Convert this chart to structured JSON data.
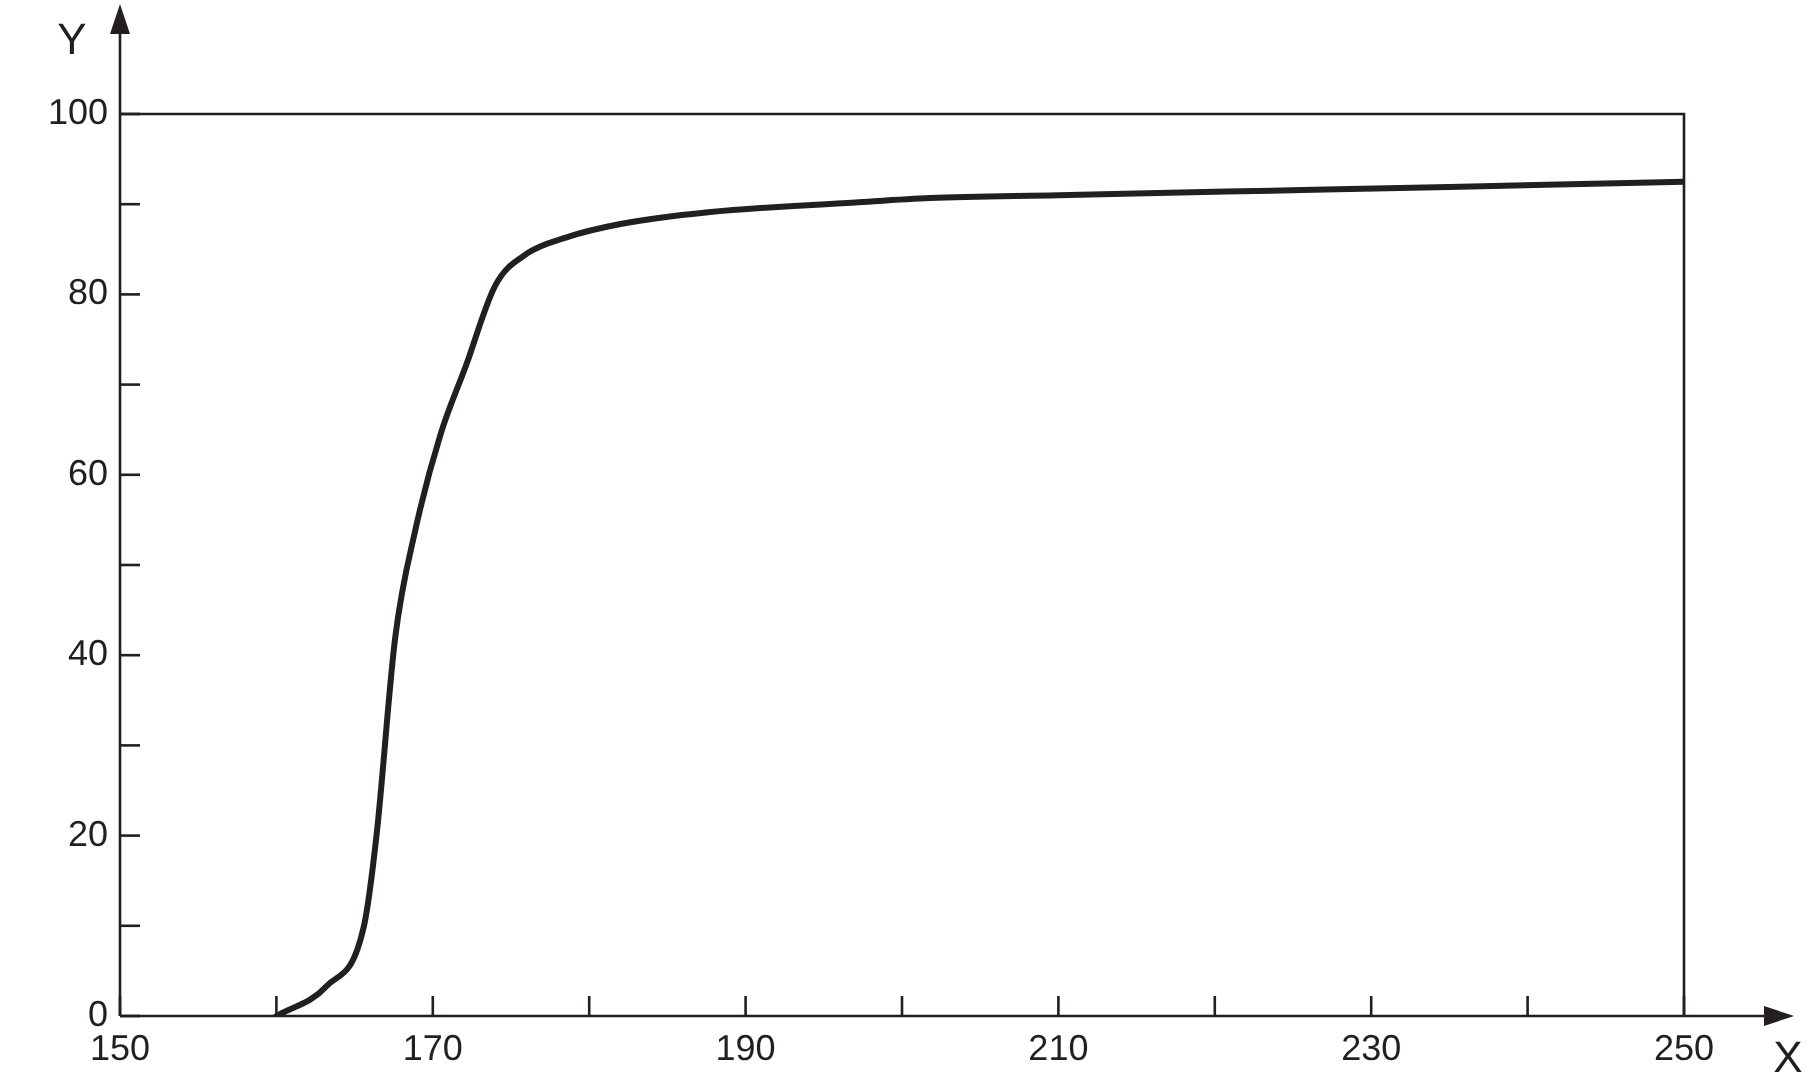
{
  "chart_data": {
    "type": "line",
    "xlabel": "X",
    "ylabel": "Y",
    "x": [
      160,
      163.2,
      165.6,
      166.4,
      167.6,
      168.9,
      170.5,
      172.1,
      174,
      176,
      178.5,
      182,
      187.6,
      197,
      201.8,
      210,
      220.7,
      235,
      250
    ],
    "series": [
      {
        "color": "#231f20",
        "values": [
          0,
          3.3,
          10,
          20,
          42,
          54,
          64.5,
          72,
          81,
          84.5,
          86.3,
          87.8,
          89.1,
          90.2,
          90.7,
          91,
          91.4,
          91.9,
          92.5
        ]
      }
    ],
    "xlim": [
      150,
      250
    ],
    "ylim": [
      0,
      100
    ],
    "xticks": [
      150,
      {
        "value": 160,
        "label": null
      },
      170,
      {
        "value": 180,
        "label": null
      },
      190,
      {
        "value": 200,
        "label": null
      },
      210,
      {
        "value": 220,
        "label": null
      },
      230,
      {
        "value": 240,
        "label": null
      },
      250
    ],
    "yticks": [
      0,
      {
        "value": 10,
        "label": null
      },
      20,
      {
        "value": 30,
        "label": null
      },
      40,
      {
        "value": 50,
        "label": null
      },
      60,
      {
        "value": 70,
        "label": null
      },
      80,
      {
        "value": 90,
        "label": null
      },
      100
    ],
    "grid": false,
    "legend": false,
    "marker": "none",
    "line_style": "solid"
  }
}
